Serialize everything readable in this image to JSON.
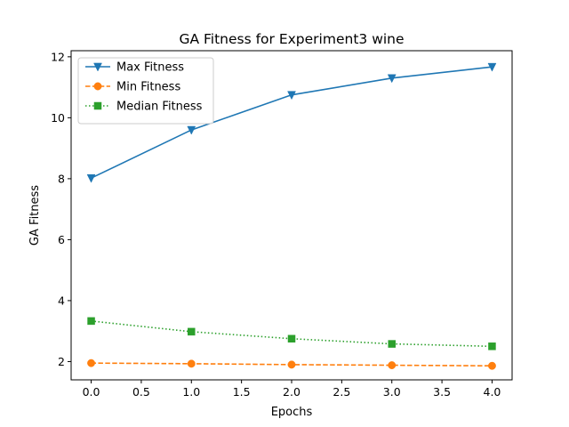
{
  "chart_data": {
    "type": "line",
    "title": "GA Fitness for Experiment3 wine",
    "xlabel": "Epochs",
    "ylabel": "GA Fitness",
    "x": [
      0,
      1,
      2,
      3,
      4
    ],
    "xlim": [
      -0.2,
      4.2
    ],
    "ylim": [
      1.4,
      12.2
    ],
    "xticks": [
      "0.0",
      "0.5",
      "1.0",
      "1.5",
      "2.0",
      "2.5",
      "3.0",
      "3.5",
      "4.0"
    ],
    "yticks": [
      "2",
      "4",
      "6",
      "8",
      "10",
      "12"
    ],
    "grid": false,
    "legend_position": "top-left",
    "series": [
      {
        "name": "Max Fitness",
        "values": [
          8.02,
          9.6,
          10.75,
          11.3,
          11.67
        ],
        "color": "#1f77b4",
        "marker": "triangle-down",
        "linestyle": "solid"
      },
      {
        "name": "Min Fitness",
        "values": [
          1.95,
          1.93,
          1.9,
          1.88,
          1.86
        ],
        "color": "#ff7f0e",
        "marker": "circle",
        "linestyle": "dashed"
      },
      {
        "name": "Median Fitness",
        "values": [
          3.33,
          2.98,
          2.75,
          2.58,
          2.5
        ],
        "color": "#2ca02c",
        "marker": "square",
        "linestyle": "dotted"
      }
    ]
  }
}
